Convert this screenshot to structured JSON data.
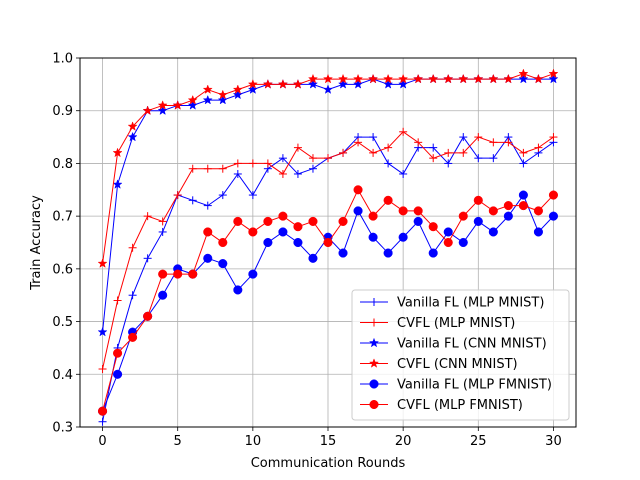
{
  "chart_data": {
    "type": "line",
    "title": "",
    "xlabel": "Communication Rounds",
    "ylabel": "Train Accuracy",
    "xlim": [
      -1.5,
      31.5
    ],
    "ylim": [
      0.3,
      1.0
    ],
    "xticks": [
      0,
      5,
      10,
      15,
      20,
      25,
      30
    ],
    "yticks": [
      0.3,
      0.4,
      0.5,
      0.6,
      0.7,
      0.8,
      0.9,
      1.0
    ],
    "xtick_labels": [
      "0",
      "5",
      "10",
      "15",
      "20",
      "25",
      "30"
    ],
    "ytick_labels": [
      "0.3",
      "0.4",
      "0.5",
      "0.6",
      "0.7",
      "0.8",
      "0.9",
      "1.0"
    ],
    "grid": true,
    "legend_position": "bottom-right",
    "x": [
      0,
      1,
      2,
      3,
      4,
      5,
      6,
      7,
      8,
      9,
      10,
      11,
      12,
      13,
      14,
      15,
      16,
      17,
      18,
      19,
      20,
      21,
      22,
      23,
      24,
      25,
      26,
      27,
      28,
      29,
      30
    ],
    "series": [
      {
        "name": "Vanilla FL (MLP MNIST)",
        "color": "#0000ff",
        "marker": "plus",
        "values": [
          0.31,
          0.45,
          0.55,
          0.62,
          0.67,
          0.74,
          0.73,
          0.72,
          0.74,
          0.78,
          0.74,
          0.79,
          0.81,
          0.78,
          0.79,
          0.81,
          0.82,
          0.85,
          0.85,
          0.8,
          0.78,
          0.83,
          0.83,
          0.8,
          0.85,
          0.81,
          0.81,
          0.85,
          0.8,
          0.82,
          0.84
        ]
      },
      {
        "name": "CVFL (MLP MNIST)",
        "color": "#ff0000",
        "marker": "plus",
        "values": [
          0.41,
          0.54,
          0.64,
          0.7,
          0.69,
          0.74,
          0.79,
          0.79,
          0.79,
          0.8,
          0.8,
          0.8,
          0.78,
          0.83,
          0.81,
          0.81,
          0.82,
          0.84,
          0.82,
          0.83,
          0.86,
          0.84,
          0.81,
          0.82,
          0.82,
          0.85,
          0.84,
          0.84,
          0.82,
          0.83,
          0.85
        ]
      },
      {
        "name": "Vanilla FL (CNN MNIST)",
        "color": "#0000ff",
        "marker": "star",
        "values": [
          0.48,
          0.76,
          0.85,
          0.9,
          0.9,
          0.91,
          0.91,
          0.92,
          0.92,
          0.93,
          0.94,
          0.95,
          0.95,
          0.95,
          0.95,
          0.94,
          0.95,
          0.95,
          0.96,
          0.95,
          0.95,
          0.96,
          0.96,
          0.96,
          0.96,
          0.96,
          0.96,
          0.96,
          0.96,
          0.96,
          0.96
        ]
      },
      {
        "name": "CVFL (CNN MNIST)",
        "color": "#ff0000",
        "marker": "star",
        "values": [
          0.61,
          0.82,
          0.87,
          0.9,
          0.91,
          0.91,
          0.92,
          0.94,
          0.93,
          0.94,
          0.95,
          0.95,
          0.95,
          0.95,
          0.96,
          0.96,
          0.96,
          0.96,
          0.96,
          0.96,
          0.96,
          0.96,
          0.96,
          0.96,
          0.96,
          0.96,
          0.96,
          0.96,
          0.97,
          0.96,
          0.97
        ]
      },
      {
        "name": "Vanilla FL (MLP FMNIST)",
        "color": "#0000ff",
        "marker": "circle",
        "values": [
          0.33,
          0.4,
          0.48,
          0.51,
          0.55,
          0.6,
          0.59,
          0.62,
          0.61,
          0.56,
          0.59,
          0.65,
          0.67,
          0.65,
          0.62,
          0.66,
          0.63,
          0.71,
          0.66,
          0.63,
          0.66,
          0.69,
          0.63,
          0.67,
          0.65,
          0.69,
          0.67,
          0.7,
          0.74,
          0.67,
          0.7
        ]
      },
      {
        "name": "CVFL (MLP FMNIST)",
        "color": "#ff0000",
        "marker": "circle",
        "values": [
          0.33,
          0.44,
          0.47,
          0.51,
          0.59,
          0.59,
          0.59,
          0.67,
          0.65,
          0.69,
          0.67,
          0.69,
          0.7,
          0.68,
          0.69,
          0.65,
          0.69,
          0.75,
          0.7,
          0.73,
          0.71,
          0.71,
          0.68,
          0.65,
          0.7,
          0.73,
          0.71,
          0.72,
          0.72,
          0.71,
          0.74
        ]
      }
    ]
  }
}
